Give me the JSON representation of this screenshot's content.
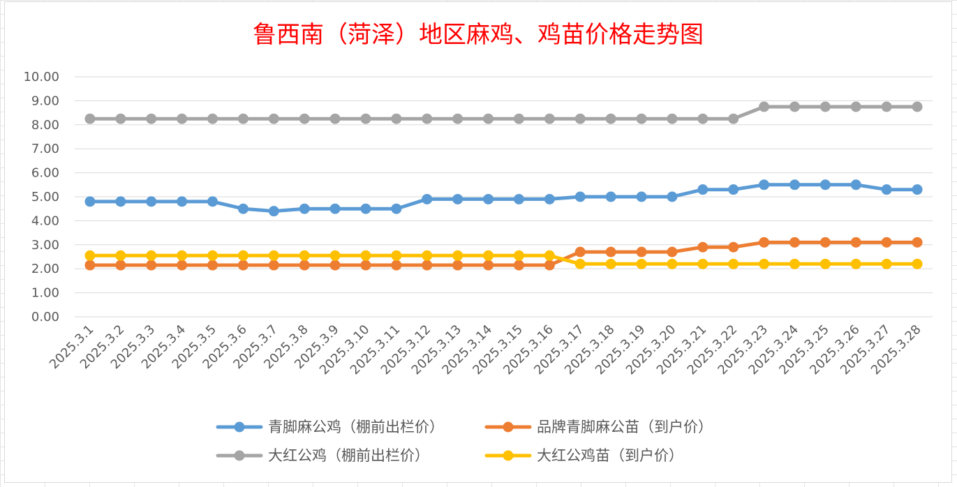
{
  "chart_data": {
    "type": "line",
    "title": "鲁西南（菏泽）地区麻鸡、鸡苗价格走势图",
    "xlabel": "",
    "ylabel": "",
    "ylim": [
      0,
      10
    ],
    "yticks": [
      "0.00",
      "1.00",
      "2.00",
      "3.00",
      "4.00",
      "5.00",
      "6.00",
      "7.00",
      "8.00",
      "9.00",
      "10.00"
    ],
    "grid": true,
    "legend_position": "bottom",
    "x": [
      "2025.3.1",
      "2025.3.2",
      "2025.3.3",
      "2025.3.4",
      "2025.3.5",
      "2025.3.6",
      "2025.3.7",
      "2025.3.8",
      "2025.3.9",
      "2025.3.10",
      "2025.3.11",
      "2025.3.12",
      "2025.3.13",
      "2025.3.14",
      "2025.3.15",
      "2025.3.16",
      "2025.3.17",
      "2025.3.18",
      "2025.3.19",
      "2025.3.20",
      "2025.3.21",
      "2025.3.22",
      "2025.3.23",
      "2025.3.24",
      "2025.3.25",
      "2025.3.26",
      "2025.3.27",
      "2025.3.28"
    ],
    "series": [
      {
        "name": "青脚麻公鸡（棚前出栏价）",
        "color": "#5b9bd5",
        "values": [
          4.8,
          4.8,
          4.8,
          4.8,
          4.8,
          4.5,
          4.4,
          4.5,
          4.5,
          4.5,
          4.5,
          4.9,
          4.9,
          4.9,
          4.9,
          4.9,
          5.0,
          5.0,
          5.0,
          5.0,
          5.3,
          5.3,
          5.5,
          5.5,
          5.5,
          5.5,
          5.3,
          5.3
        ]
      },
      {
        "name": "品牌青脚麻公苗（到户价）",
        "color": "#ed7d31",
        "values": [
          2.15,
          2.15,
          2.15,
          2.15,
          2.15,
          2.15,
          2.15,
          2.15,
          2.15,
          2.15,
          2.15,
          2.15,
          2.15,
          2.15,
          2.15,
          2.15,
          2.7,
          2.7,
          2.7,
          2.7,
          2.9,
          2.9,
          3.1,
          3.1,
          3.1,
          3.1,
          3.1,
          3.1
        ]
      },
      {
        "name": "大红公鸡（棚前出栏价）",
        "color": "#a5a5a5",
        "values": [
          8.25,
          8.25,
          8.25,
          8.25,
          8.25,
          8.25,
          8.25,
          8.25,
          8.25,
          8.25,
          8.25,
          8.25,
          8.25,
          8.25,
          8.25,
          8.25,
          8.25,
          8.25,
          8.25,
          8.25,
          8.25,
          8.25,
          8.75,
          8.75,
          8.75,
          8.75,
          8.75,
          8.75
        ]
      },
      {
        "name": "大红公鸡苗（到户价）",
        "color": "#ffc000",
        "values": [
          2.55,
          2.55,
          2.55,
          2.55,
          2.55,
          2.55,
          2.55,
          2.55,
          2.55,
          2.55,
          2.55,
          2.55,
          2.55,
          2.55,
          2.55,
          2.55,
          2.2,
          2.2,
          2.2,
          2.2,
          2.2,
          2.2,
          2.2,
          2.2,
          2.2,
          2.2,
          2.2,
          2.2
        ]
      }
    ]
  }
}
